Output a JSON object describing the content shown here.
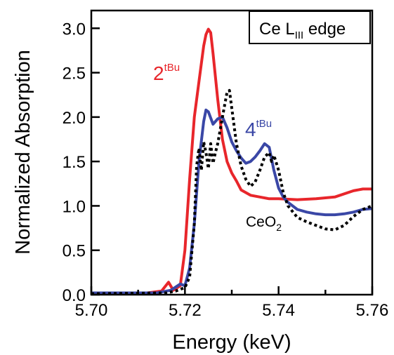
{
  "chart_data": {
    "type": "line",
    "title": "",
    "xlabel": "Energy (keV)",
    "ylabel": "Normalized Absorption",
    "xlim": [
      5.7,
      5.76
    ],
    "ylim": [
      0.0,
      3.2
    ],
    "xticks": [
      "5.70",
      "5.72",
      "5.74",
      "5.76"
    ],
    "yticks": [
      "0.0",
      "0.5",
      "1.0",
      "1.5",
      "2.0",
      "2.5",
      "3.0"
    ],
    "grid": false,
    "legend": "none",
    "box_label": {
      "main": "Ce L",
      "sub": "III",
      "rest": " edge"
    },
    "series": [
      {
        "name": "2tBu",
        "label_main": "2",
        "label_sup": "tBu",
        "color": "#e8262b",
        "style": "solid",
        "x": [
          5.7,
          5.712,
          5.715,
          5.7165,
          5.7175,
          5.719,
          5.72,
          5.721,
          5.722,
          5.723,
          5.724,
          5.7245,
          5.725,
          5.7255,
          5.726,
          5.727,
          5.728,
          5.729,
          5.73,
          5.731,
          5.732,
          5.734,
          5.736,
          5.738,
          5.74,
          5.744,
          5.748,
          5.752,
          5.756,
          5.758,
          5.76
        ],
        "y": [
          0.02,
          0.02,
          0.04,
          0.14,
          0.05,
          0.1,
          0.5,
          1.3,
          2.0,
          2.4,
          2.8,
          2.93,
          2.99,
          2.95,
          2.72,
          2.2,
          1.75,
          1.5,
          1.37,
          1.28,
          1.18,
          1.12,
          1.1,
          1.08,
          1.08,
          1.07,
          1.08,
          1.1,
          1.17,
          1.19,
          1.19
        ]
      },
      {
        "name": "4tBu",
        "label_main": "4",
        "label_sup": "tBu",
        "color": "#3a47a6",
        "style": "solid",
        "x": [
          5.7,
          5.714,
          5.717,
          5.719,
          5.72,
          5.721,
          5.722,
          5.723,
          5.724,
          5.7245,
          5.725,
          5.726,
          5.727,
          5.728,
          5.729,
          5.73,
          5.731,
          5.732,
          5.733,
          5.734,
          5.735,
          5.736,
          5.737,
          5.738,
          5.739,
          5.74,
          5.741,
          5.742,
          5.744,
          5.746,
          5.748,
          5.75,
          5.752,
          5.754,
          5.756,
          5.758,
          5.76
        ],
        "y": [
          0.02,
          0.02,
          0.05,
          0.12,
          0.1,
          0.3,
          0.8,
          1.5,
          1.95,
          2.08,
          2.06,
          1.92,
          1.98,
          2.0,
          1.88,
          1.72,
          1.62,
          1.54,
          1.48,
          1.5,
          1.55,
          1.62,
          1.7,
          1.66,
          1.4,
          1.2,
          1.1,
          1.04,
          0.96,
          0.93,
          0.91,
          0.9,
          0.9,
          0.91,
          0.93,
          0.96,
          0.97
        ]
      },
      {
        "name": "CeO2",
        "label_main": "CeO",
        "label_sub": "2",
        "color": "#000000",
        "style": "dotted",
        "x": [
          5.7,
          5.716,
          5.718,
          5.72,
          5.721,
          5.722,
          5.7225,
          5.723,
          5.7235,
          5.724,
          5.7245,
          5.725,
          5.7255,
          5.726,
          5.7265,
          5.727,
          5.728,
          5.729,
          5.7295,
          5.73,
          5.731,
          5.732,
          5.733,
          5.734,
          5.735,
          5.736,
          5.737,
          5.738,
          5.7385,
          5.739,
          5.74,
          5.741,
          5.742,
          5.744,
          5.746,
          5.748,
          5.75,
          5.752,
          5.754,
          5.756,
          5.758,
          5.76
        ],
        "y": [
          0.01,
          0.02,
          0.04,
          0.08,
          0.2,
          0.8,
          1.45,
          1.65,
          1.4,
          1.72,
          1.6,
          1.42,
          1.7,
          1.48,
          1.6,
          1.7,
          2.0,
          2.28,
          2.3,
          2.1,
          1.7,
          1.45,
          1.3,
          1.22,
          1.27,
          1.4,
          1.55,
          1.6,
          1.5,
          1.57,
          1.4,
          1.15,
          1.0,
          0.87,
          0.82,
          0.78,
          0.74,
          0.73,
          0.78,
          0.88,
          0.96,
          1.0
        ]
      }
    ]
  }
}
